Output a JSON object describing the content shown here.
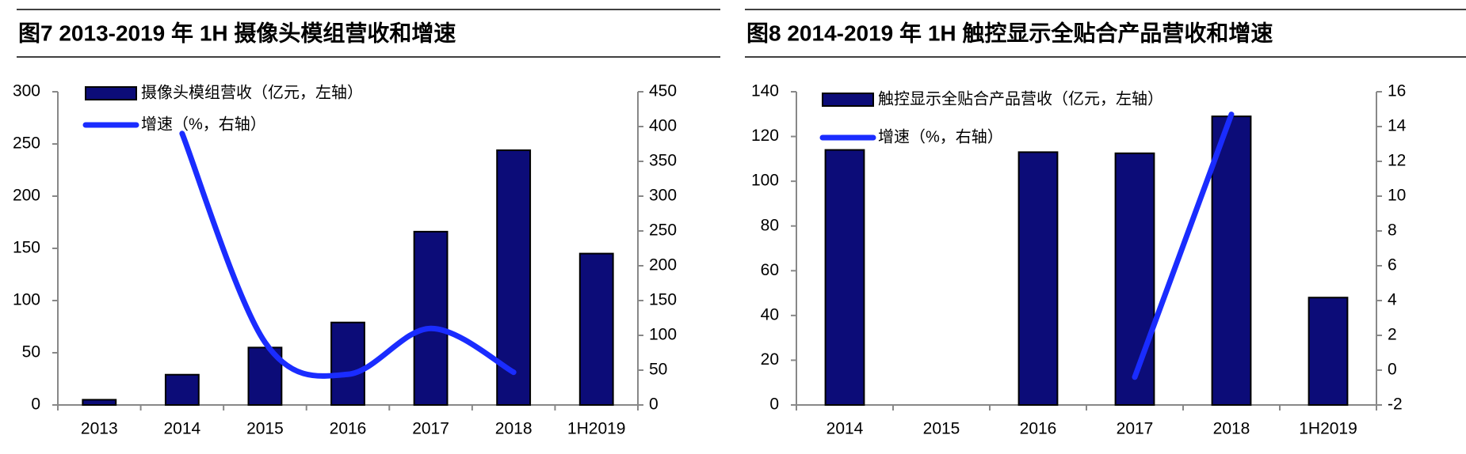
{
  "chart_data": [
    {
      "type": "bar",
      "title": "图7  2013-2019 年 1H 摄像头模组营收和增速",
      "categories": [
        "2013",
        "2014",
        "2015",
        "2016",
        "2017",
        "2018",
        "1H2019"
      ],
      "series": [
        {
          "name": "摄像头模组营收（亿元，左轴）",
          "color": "#0c0c78",
          "values": [
            5,
            29,
            55,
            79,
            166,
            244,
            145
          ]
        },
        {
          "name": "增速（%，右轴）",
          "color": "#1a2cff",
          "type": "line",
          "axis": "y2",
          "smooth": true,
          "values": [
            null,
            390,
            90,
            44,
            110,
            47,
            null
          ]
        }
      ],
      "ylim": [
        0,
        300
      ],
      "yticks": [
        0,
        50,
        100,
        150,
        200,
        250,
        300
      ],
      "y2lim": [
        0,
        450
      ],
      "y2ticks": [
        0,
        50,
        100,
        150,
        200,
        250,
        300,
        350,
        400,
        450
      ]
    },
    {
      "type": "bar",
      "title": "图8  2014-2019 年 1H 触控显示全贴合产品营收和增速",
      "categories": [
        "2014",
        "2015",
        "2016",
        "2017",
        "2018",
        "1H2019"
      ],
      "series": [
        {
          "name": "触控显示全贴合产品营收（亿元，左轴）",
          "color": "#0c0c78",
          "values": [
            114,
            null,
            113,
            112.5,
            129,
            48
          ]
        },
        {
          "name": "增速（%，右轴）",
          "color": "#1a2cff",
          "type": "line",
          "axis": "y2",
          "smooth": false,
          "values": [
            null,
            null,
            null,
            -0.4,
            14.7,
            null
          ]
        }
      ],
      "ylim": [
        0,
        140
      ],
      "yticks": [
        0,
        20,
        40,
        60,
        80,
        100,
        120,
        140
      ],
      "y2lim": [
        -2,
        16
      ],
      "y2ticks": [
        -2,
        0,
        2,
        4,
        6,
        8,
        10,
        12,
        14,
        16
      ]
    }
  ]
}
